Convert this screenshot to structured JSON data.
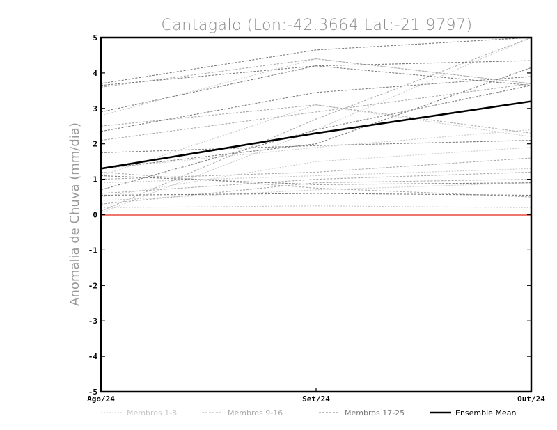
{
  "chart_data": {
    "type": "line",
    "title": "Cantagalo (Lon:-42.3664,Lat:-21.9797)",
    "ylabel": "Anomalia de Chuva (mm/dia)",
    "xlabel": "",
    "categories": [
      "Ago/24",
      "Set/24",
      "Out/24"
    ],
    "ylim": [
      -5,
      5
    ],
    "yticks": [
      "5",
      "4",
      "3",
      "2",
      "1",
      "0",
      "-1",
      "-2",
      "-3",
      "-4",
      "-5"
    ],
    "zero_line_color": "#e8483c",
    "groups": [
      {
        "name": "Membros 1-8",
        "color": "#c8c8c8"
      },
      {
        "name": "Membros 9-16",
        "color": "#a9a9a9"
      },
      {
        "name": "Membros 17-25",
        "color": "#7a7a7a"
      },
      {
        "name": "Ensemble Mean",
        "color": "#000000"
      }
    ],
    "series": [
      {
        "group": 0,
        "values": [
          0.2,
          0.25,
          0.2
        ]
      },
      {
        "group": 0,
        "values": [
          0.05,
          2.4,
          5.0
        ]
      },
      {
        "group": 0,
        "values": [
          0.9,
          1.1,
          1.3
        ]
      },
      {
        "group": 0,
        "values": [
          1.3,
          1.9,
          2.4
        ]
      },
      {
        "group": 0,
        "values": [
          0.5,
          1.5,
          1.9
        ]
      },
      {
        "group": 0,
        "values": [
          2.8,
          4.4,
          3.7
        ]
      },
      {
        "group": 0,
        "values": [
          0.4,
          0.7,
          0.9
        ]
      },
      {
        "group": 0,
        "values": [
          1.1,
          3.1,
          2.2
        ]
      },
      {
        "group": 1,
        "values": [
          0.1,
          2.7,
          5.0
        ]
      },
      {
        "group": 1,
        "values": [
          3.6,
          4.4,
          3.7
        ]
      },
      {
        "group": 1,
        "values": [
          2.5,
          3.1,
          2.3
        ]
      },
      {
        "group": 1,
        "values": [
          1.0,
          1.2,
          1.6
        ]
      },
      {
        "group": 1,
        "values": [
          0.6,
          1.0,
          1.2
        ]
      },
      {
        "group": 1,
        "values": [
          0.3,
          0.9,
          1.0
        ]
      },
      {
        "group": 1,
        "values": [
          2.1,
          2.9,
          3.7
        ]
      },
      {
        "group": 1,
        "values": [
          1.2,
          0.75,
          0.5
        ]
      },
      {
        "group": 2,
        "values": [
          3.7,
          4.65,
          5.0
        ]
      },
      {
        "group": 2,
        "values": [
          3.65,
          4.2,
          3.65
        ]
      },
      {
        "group": 2,
        "values": [
          2.9,
          4.2,
          4.35
        ]
      },
      {
        "group": 2,
        "values": [
          2.35,
          3.45,
          3.9
        ]
      },
      {
        "group": 2,
        "values": [
          1.75,
          1.95,
          2.1
        ]
      },
      {
        "group": 2,
        "values": [
          1.3,
          2.0,
          4.15
        ]
      },
      {
        "group": 2,
        "values": [
          1.1,
          0.85,
          0.9
        ]
      },
      {
        "group": 2,
        "values": [
          0.7,
          2.4,
          3.65
        ]
      },
      {
        "group": 2,
        "values": [
          0.55,
          0.6,
          0.55
        ]
      }
    ],
    "mean": [
      1.3,
      2.3,
      3.2
    ],
    "legend": [
      "Membros 1-8",
      "Membros 9-16",
      "Membros 17-25",
      "Ensemble Mean"
    ],
    "legend_position": "bottom",
    "grid": false
  }
}
